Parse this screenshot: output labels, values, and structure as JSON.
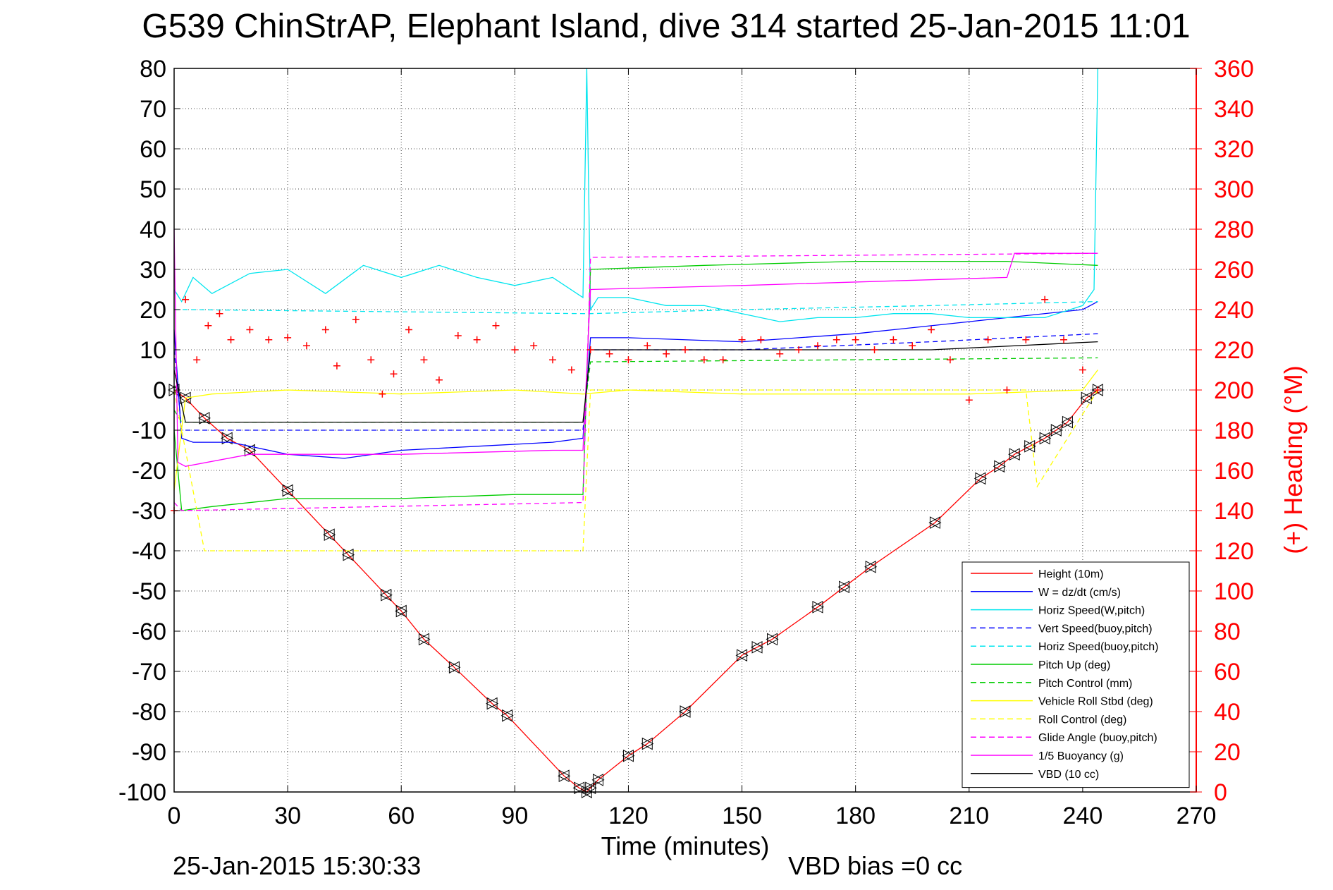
{
  "chart_data": {
    "type": "line",
    "title": "G539 ChinStrAP, Elephant Island, dive 314 started 25-Jan-2015 11:01",
    "xlabel": "Time (minutes)",
    "ylabel": "",
    "ylabel_right": "(+) Heading (°M)",
    "footer_left": "25-Jan-2015 15:30:33",
    "footer_right": "VBD bias =0 cc",
    "xlim": [
      0,
      270
    ],
    "ylim": [
      -100,
      80
    ],
    "ylim_right": [
      0,
      360
    ],
    "x_ticks": [
      0,
      30,
      60,
      90,
      120,
      150,
      180,
      210,
      240,
      270
    ],
    "y_ticks": [
      80,
      70,
      60,
      50,
      40,
      30,
      20,
      10,
      0,
      -10,
      -20,
      -30,
      -40,
      -50,
      -60,
      -70,
      -80,
      -90,
      -100
    ],
    "y_ticks_right": [
      360,
      340,
      320,
      300,
      280,
      260,
      240,
      220,
      200,
      180,
      160,
      140,
      120,
      100,
      80,
      60,
      40,
      20,
      0
    ],
    "grid": true,
    "legend_position": "bottom-right",
    "colors": {
      "red": "#ff0000",
      "blue": "#0000ff",
      "cyan": "#00e5ee",
      "green": "#00cc00",
      "yellow": "#ffff00",
      "magenta": "#ff00ff",
      "black": "#000000"
    },
    "series": [
      {
        "name": "Height (10m)",
        "color": "#ff0000",
        "style": "solid",
        "markers": true,
        "x": [
          0,
          3,
          8,
          14,
          20,
          30,
          41,
          46,
          56,
          60,
          66,
          74,
          84,
          88,
          103,
          107,
          109,
          110,
          112,
          120,
          125,
          135,
          150,
          154,
          158,
          170,
          177,
          184,
          201,
          213,
          218,
          222,
          226,
          230,
          233,
          236,
          241,
          244
        ],
        "y": [
          0,
          -2,
          -7,
          -12,
          -15,
          -25,
          -36,
          -41,
          -51,
          -55,
          -62,
          -69,
          -78,
          -81,
          -96,
          -99,
          -100,
          -99,
          -97,
          -91,
          -88,
          -80,
          -66,
          -64,
          -62,
          -54,
          -49,
          -44,
          -33,
          -22,
          -19,
          -16,
          -14,
          -12,
          -10,
          -8,
          -2,
          0
        ]
      },
      {
        "name": "W = dz/dt (cm/s)",
        "color": "#0000ff",
        "style": "solid",
        "x": [
          0,
          2,
          5,
          15,
          30,
          45,
          60,
          80,
          100,
          108,
          110,
          120,
          150,
          180,
          210,
          240,
          244
        ],
        "y": [
          15,
          -12,
          -13,
          -13,
          -16,
          -17,
          -15,
          -14,
          -13,
          -12,
          13,
          13,
          12,
          14,
          17,
          20,
          22
        ]
      },
      {
        "name": "Horiz Speed(W,pitch)",
        "color": "#00e5ee",
        "style": "solid",
        "x": [
          0,
          2,
          5,
          10,
          20,
          30,
          40,
          50,
          60,
          70,
          80,
          90,
          100,
          108,
          109,
          110,
          112,
          120,
          130,
          140,
          150,
          160,
          170,
          180,
          190,
          200,
          210,
          220,
          230,
          240,
          243,
          244
        ],
        "y": [
          25,
          22,
          28,
          24,
          29,
          30,
          24,
          31,
          28,
          31,
          28,
          26,
          28,
          23,
          80,
          20,
          23,
          23,
          21,
          21,
          19,
          17,
          18,
          18,
          19,
          19,
          18,
          18,
          18,
          21,
          25,
          80
        ]
      },
      {
        "name": "Vert Speed(buoy,pitch)",
        "color": "#0000ff",
        "style": "dashed",
        "x": [
          0,
          2,
          108,
          110,
          150,
          200,
          244
        ],
        "y": [
          10,
          -10,
          -10,
          10,
          10,
          12,
          14
        ]
      },
      {
        "name": "Horiz Speed(buoy,pitch)",
        "color": "#00e5ee",
        "style": "dashed",
        "x": [
          0,
          2,
          108,
          110,
          150,
          200,
          244
        ],
        "y": [
          20,
          20,
          19,
          19,
          20,
          21,
          22
        ]
      },
      {
        "name": "Pitch Up (deg)",
        "color": "#00cc00",
        "style": "solid",
        "x": [
          0,
          2,
          10,
          30,
          60,
          90,
          108,
          110,
          140,
          180,
          220,
          244
        ],
        "y": [
          -10,
          -30,
          -29,
          -27,
          -27,
          -26,
          -26,
          30,
          31,
          32,
          32,
          31
        ]
      },
      {
        "name": "Pitch Control (mm)",
        "color": "#00cc00",
        "style": "dashed",
        "x": [
          0,
          2,
          108,
          110,
          244
        ],
        "y": [
          -5,
          -8,
          -8,
          7,
          8
        ]
      },
      {
        "name": "Vehicle Roll Stbd (deg)",
        "color": "#ffff00",
        "style": "solid",
        "x": [
          0,
          3,
          10,
          30,
          60,
          90,
          108,
          120,
          150,
          180,
          210,
          240,
          244
        ],
        "y": [
          -25,
          -2,
          -1,
          0,
          -1,
          0,
          -1,
          0,
          -1,
          -1,
          -1,
          0,
          5
        ]
      },
      {
        "name": "Roll Control (deg)",
        "color": "#ffff00",
        "style": "dashed",
        "x": [
          0,
          8,
          108,
          110,
          225,
          228,
          244
        ],
        "y": [
          0,
          -40,
          -40,
          0,
          0,
          -24,
          0
        ]
      },
      {
        "name": "Glide Angle (buoy,pitch)",
        "color": "#ff00ff",
        "style": "dashed",
        "x": [
          0,
          2,
          108,
          110,
          244
        ],
        "y": [
          -28,
          -30,
          -28,
          33,
          34
        ]
      },
      {
        "name": "1/5 Buoyancy (g)",
        "color": "#ff00ff",
        "style": "solid",
        "x": [
          0,
          1,
          3,
          20,
          60,
          100,
          108,
          110,
          150,
          220,
          222,
          244
        ],
        "y": [
          40,
          -18,
          -19,
          -16,
          -16,
          -15,
          -15,
          25,
          26,
          28,
          34,
          34
        ]
      },
      {
        "name": "VBD (10 cc)",
        "color": "#000000",
        "style": "solid",
        "x": [
          0,
          3,
          108,
          110,
          200,
          244
        ],
        "y": [
          5,
          -8,
          -8,
          10,
          10,
          12
        ]
      },
      {
        "name": "Heading",
        "color": "#ff0000",
        "style": "plus",
        "axis": "right",
        "x": [
          0,
          3,
          6,
          9,
          12,
          15,
          20,
          25,
          30,
          35,
          40,
          43,
          48,
          52,
          55,
          58,
          62,
          66,
          70,
          75,
          80,
          85,
          90,
          95,
          100,
          105,
          110,
          115,
          120,
          125,
          130,
          135,
          140,
          145,
          150,
          155,
          160,
          165,
          170,
          175,
          180,
          185,
          190,
          195,
          200,
          205,
          210,
          215,
          220,
          225,
          230,
          235,
          240,
          244
        ],
        "y": [
          140,
          245,
          215,
          232,
          238,
          225,
          230,
          225,
          226,
          222,
          230,
          212,
          235,
          215,
          198,
          208,
          230,
          215,
          205,
          227,
          225,
          232,
          220,
          222,
          215,
          210,
          220,
          218,
          215,
          222,
          218,
          220,
          215,
          215,
          225,
          225,
          218,
          220,
          222,
          225,
          225,
          220,
          225,
          222,
          230,
          215,
          195,
          225,
          200,
          225,
          245,
          225,
          210,
          200
        ]
      }
    ]
  }
}
